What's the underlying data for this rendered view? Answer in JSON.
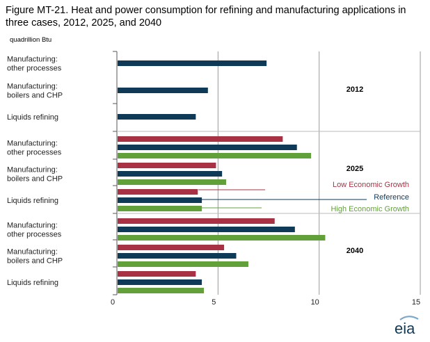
{
  "title": "Figure MT-21. Heat and power consumption for refining and manufacturing applications in three cases, 2012, 2025, and 2040",
  "units": "quadrillion  Btu",
  "logo_text": "eia",
  "colors": {
    "Low Economic Growth": "#a83243",
    "Reference": "#0f3a57",
    "High Economic Growth": "#62a03a",
    "axis": "#555555",
    "grid": "#999999"
  },
  "chart_data": {
    "type": "bar",
    "orientation": "horizontal",
    "xlim": [
      0,
      15
    ],
    "xticks": [
      "0",
      "5",
      "10",
      "15"
    ],
    "grid": true,
    "legend_position": "right, inline with 2025 group",
    "series_names": [
      "Low Economic Growth",
      "Reference",
      "High Economic Growth"
    ],
    "groups": [
      {
        "year": "2012",
        "categories": [
          {
            "label": "Manufacturing:\nother processes",
            "bars": [
              {
                "series": "Reference",
                "value": 7.4
              }
            ]
          },
          {
            "label": "Manufacturing:\nboilers and CHP",
            "bars": [
              {
                "series": "Reference",
                "value": 4.5
              }
            ]
          },
          {
            "label": "Liquids refining",
            "bars": [
              {
                "series": "Reference",
                "value": 3.9
              }
            ]
          }
        ]
      },
      {
        "year": "2025",
        "categories": [
          {
            "label": "Manufacturing:\nother processes",
            "bars": [
              {
                "series": "Low Economic Growth",
                "value": 8.2
              },
              {
                "series": "Reference",
                "value": 8.9
              },
              {
                "series": "High Economic Growth",
                "value": 9.6
              }
            ]
          },
          {
            "label": "Manufacturing:\nboilers and CHP",
            "bars": [
              {
                "series": "Low Economic Growth",
                "value": 4.9
              },
              {
                "series": "Reference",
                "value": 5.2
              },
              {
                "series": "High Economic Growth",
                "value": 5.4
              }
            ]
          },
          {
            "label": "Liquids refining",
            "bars": [
              {
                "series": "Low Economic Growth",
                "value": 4.0
              },
              {
                "series": "Reference",
                "value": 4.2
              },
              {
                "series": "High Economic Growth",
                "value": 4.2
              }
            ]
          }
        ]
      },
      {
        "year": "2040",
        "categories": [
          {
            "label": "Manufacturing:\nother processes",
            "bars": [
              {
                "series": "Low Economic Growth",
                "value": 7.8
              },
              {
                "series": "Reference",
                "value": 8.8
              },
              {
                "series": "High Economic Growth",
                "value": 10.3
              }
            ]
          },
          {
            "label": "Manufacturing:\nboilers and CHP",
            "bars": [
              {
                "series": "Low Economic Growth",
                "value": 5.3
              },
              {
                "series": "Reference",
                "value": 5.9
              },
              {
                "series": "High Economic Growth",
                "value": 6.5
              }
            ]
          },
          {
            "label": "Liquids refining",
            "bars": [
              {
                "series": "Low Economic Growth",
                "value": 3.9
              },
              {
                "series": "Reference",
                "value": 4.2
              },
              {
                "series": "High Economic Growth",
                "value": 4.3
              }
            ]
          }
        ]
      }
    ]
  }
}
